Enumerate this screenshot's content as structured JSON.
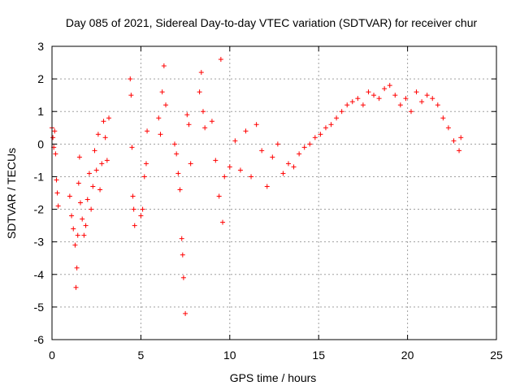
{
  "chart_data": {
    "type": "scatter",
    "title": "Day 085 of 2021, Sidereal Day-to-day VTEC variation (SDTVAR) for receiver chur",
    "xlabel": "GPS time / hours",
    "ylabel": "SDTVAR / TECUs",
    "xlim": [
      0,
      25
    ],
    "ylim": [
      -6,
      3
    ],
    "xticks": [
      0,
      5,
      10,
      15,
      20,
      25
    ],
    "yticks": [
      -6,
      -5,
      -4,
      -3,
      -2,
      -1,
      0,
      1,
      2,
      3
    ],
    "grid": true,
    "marker": "+",
    "marker_color": "#ff0000",
    "series": [
      {
        "name": "SDTVAR",
        "x": [
          0.0,
          0.05,
          0.1,
          0.15,
          0.2,
          0.25,
          0.3,
          0.35,
          1.0,
          1.1,
          1.2,
          1.3,
          1.35,
          1.4,
          1.45,
          1.5,
          1.55,
          1.6,
          1.7,
          1.8,
          1.9,
          2.0,
          2.1,
          2.2,
          2.3,
          2.4,
          2.5,
          2.6,
          2.7,
          2.8,
          2.9,
          3.0,
          3.1,
          3.2,
          4.4,
          4.45,
          4.5,
          4.55,
          4.6,
          4.65,
          5.0,
          5.1,
          5.2,
          5.3,
          5.35,
          6.0,
          6.1,
          6.2,
          6.3,
          6.4,
          6.9,
          7.0,
          7.1,
          7.2,
          7.3,
          7.35,
          7.4,
          7.5,
          7.6,
          7.7,
          7.8,
          8.3,
          8.4,
          8.5,
          8.6,
          9.0,
          9.2,
          9.4,
          9.5,
          9.6,
          9.7,
          10.0,
          10.3,
          10.6,
          10.9,
          11.2,
          11.5,
          11.8,
          12.1,
          12.4,
          12.7,
          13.0,
          13.3,
          13.6,
          13.9,
          14.2,
          14.5,
          14.8,
          15.1,
          15.4,
          15.7,
          16.0,
          16.3,
          16.6,
          16.9,
          17.2,
          17.5,
          17.8,
          18.1,
          18.4,
          18.7,
          19.0,
          19.3,
          19.6,
          19.9,
          20.2,
          20.5,
          20.8,
          21.1,
          21.4,
          21.7,
          22.0,
          22.3,
          22.6,
          22.9,
          23.0
        ],
        "y": [
          0.5,
          0.2,
          -0.1,
          0.4,
          -0.3,
          -1.1,
          -1.5,
          -1.9,
          -1.6,
          -2.2,
          -2.6,
          -3.1,
          -4.4,
          -3.8,
          -2.8,
          -1.2,
          -0.4,
          -1.8,
          -2.3,
          -2.8,
          -2.5,
          -1.7,
          -0.9,
          -2.0,
          -1.3,
          -0.2,
          -0.8,
          0.3,
          -1.4,
          -0.6,
          0.7,
          0.2,
          -0.5,
          0.8,
          2.0,
          1.5,
          -0.1,
          -1.6,
          -2.0,
          -2.5,
          -2.2,
          -2.0,
          -1.0,
          -0.6,
          0.4,
          0.8,
          0.3,
          1.6,
          2.4,
          1.2,
          0.0,
          -0.3,
          -0.9,
          -1.4,
          -2.9,
          -3.4,
          -4.1,
          -5.2,
          0.9,
          0.6,
          -0.6,
          1.6,
          2.2,
          1.0,
          0.5,
          0.7,
          -0.5,
          -1.6,
          2.6,
          -2.4,
          -1.0,
          -0.7,
          0.1,
          -0.8,
          0.4,
          -1.0,
          0.6,
          -0.2,
          -1.3,
          -0.4,
          0.0,
          -0.9,
          -0.6,
          -0.7,
          -0.3,
          -0.1,
          0.0,
          0.2,
          0.3,
          0.5,
          0.6,
          0.8,
          1.0,
          1.2,
          1.3,
          1.4,
          1.2,
          1.6,
          1.5,
          1.4,
          1.7,
          1.8,
          1.5,
          1.2,
          1.4,
          1.0,
          1.6,
          1.3,
          1.5,
          1.4,
          1.2,
          0.8,
          0.5,
          0.1,
          -0.2,
          0.2
        ]
      }
    ]
  }
}
